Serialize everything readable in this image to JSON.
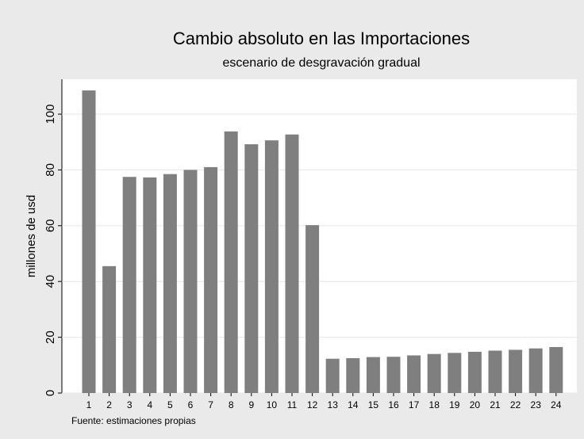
{
  "chart_data": {
    "type": "bar",
    "title": "Cambio absoluto en las Importaciones",
    "subtitle": "escenario de desgravación gradual",
    "y_label": "millones de usd",
    "note": "Fuente: estimaciones propias",
    "categories": [
      "1",
      "2",
      "3",
      "4",
      "5",
      "6",
      "7",
      "8",
      "9",
      "10",
      "11",
      "12",
      "13",
      "14",
      "15",
      "16",
      "17",
      "18",
      "19",
      "20",
      "21",
      "22",
      "23",
      "24"
    ],
    "values": [
      108.5,
      45.5,
      77.5,
      77.3,
      78.5,
      80,
      81,
      93.8,
      89.2,
      90.6,
      92.7,
      60.2,
      12.3,
      12.5,
      12.9,
      13.0,
      13.5,
      14.0,
      14.4,
      14.8,
      15.2,
      15.5,
      16.0,
      16.5
    ],
    "color": "#7f7f7f",
    "ylim": [
      0,
      112
    ],
    "yticks": [
      0,
      20,
      40,
      60,
      80,
      100
    ],
    "grid": true
  }
}
